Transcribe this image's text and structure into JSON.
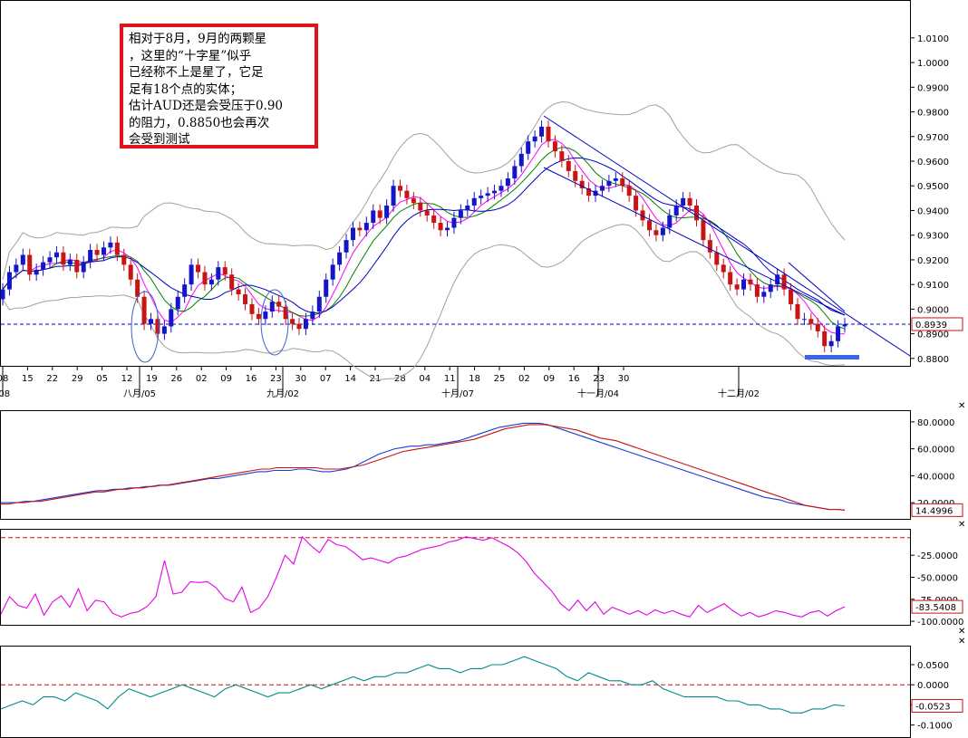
{
  "annotation": {
    "lines": [
      "相对于8月，9月的两颗星",
      "，这里的“十字星”似乎",
      "已经称不上是星了，它足",
      "足有18个点的实体；",
      "估计AUD还是会受压于0.90",
      "的阻力，0.8850也会再次",
      "会受到测试"
    ]
  },
  "colors": {
    "bull": "#1414c8",
    "bear": "#c81414",
    "bollinger": "#a0a0a0",
    "ma_fast": "#ff00ff",
    "ma_mid": "#008000",
    "ma_slow": "#0000c0",
    "ref_line": "#0000c0",
    "adx_plus": "#1e3cd2",
    "adx_minus": "#c81414",
    "wr": "#e600e6",
    "osc": "#008c8c",
    "dash_red": "#c81414",
    "annotation_border": "#e0141c",
    "price_tag": "#c81414"
  },
  "chart_data": [
    {
      "type": "candlestick",
      "symbol": "AUD",
      "y_ticks": [
        "1.0100",
        "1.0000",
        "0.9900",
        "0.9800",
        "0.9700",
        "0.9600",
        "0.9500",
        "0.9400",
        "0.9300",
        "0.9200",
        "0.9100",
        "0.9000",
        "0.8900",
        "0.8800"
      ],
      "ylim": [
        0.877,
        1.025
      ],
      "last_price_label": "0.8939",
      "reference_line": 0.8939,
      "x_ticks": [
        "08",
        "15",
        "22",
        "29",
        "05",
        "12",
        "19",
        "26",
        "02",
        "09",
        "16",
        "23",
        "30",
        "07",
        "14",
        "21",
        "28",
        "04",
        "11",
        "18",
        "25",
        "02",
        "09",
        "16",
        "23",
        "30"
      ],
      "month_labels": [
        "月/08",
        "八月/05",
        "九月/02",
        "十月/07",
        "十一月/04",
        "十二月/02"
      ],
      "closes": [
        0.908,
        0.915,
        0.918,
        0.922,
        0.914,
        0.916,
        0.919,
        0.921,
        0.923,
        0.918,
        0.92,
        0.915,
        0.919,
        0.924,
        0.922,
        0.925,
        0.927,
        0.922,
        0.918,
        0.912,
        0.905,
        0.894,
        0.896,
        0.89,
        0.893,
        0.9,
        0.905,
        0.91,
        0.918,
        0.915,
        0.91,
        0.912,
        0.917,
        0.914,
        0.908,
        0.906,
        0.902,
        0.898,
        0.896,
        0.899,
        0.903,
        0.901,
        0.896,
        0.894,
        0.892,
        0.896,
        0.899,
        0.905,
        0.912,
        0.918,
        0.923,
        0.928,
        0.933,
        0.932,
        0.935,
        0.94,
        0.937,
        0.942,
        0.95,
        0.948,
        0.945,
        0.943,
        0.94,
        0.938,
        0.935,
        0.932,
        0.933,
        0.937,
        0.94,
        0.942,
        0.945,
        0.946,
        0.947,
        0.948,
        0.95,
        0.953,
        0.958,
        0.963,
        0.968,
        0.97,
        0.974,
        0.968,
        0.964,
        0.96,
        0.956,
        0.952,
        0.949,
        0.946,
        0.948,
        0.95,
        0.952,
        0.953,
        0.95,
        0.946,
        0.94,
        0.936,
        0.932,
        0.93,
        0.933,
        0.938,
        0.942,
        0.945,
        0.942,
        0.936,
        0.928,
        0.923,
        0.918,
        0.915,
        0.91,
        0.908,
        0.912,
        0.91,
        0.905,
        0.907,
        0.91,
        0.914,
        0.908,
        0.902,
        0.896,
        0.896,
        0.894,
        0.891,
        0.885,
        0.887,
        0.893,
        0.8939
      ]
    },
    {
      "type": "line",
      "name": "ADX",
      "y_ticks": [
        "80.0000",
        "60.0000",
        "40.0000",
        "20.0000"
      ],
      "ylim": [
        8,
        88
      ],
      "last_value_label": "14.4996",
      "series": [
        {
          "name": "",
          "values": [
            20,
            20,
            20,
            21,
            21,
            22,
            23,
            24,
            25,
            26,
            27,
            28,
            29,
            29,
            30,
            30,
            31,
            31,
            32,
            32,
            33,
            33,
            34,
            35,
            36,
            37,
            38,
            38,
            39,
            40,
            41,
            42,
            43,
            43,
            44,
            44,
            44,
            45,
            45,
            44,
            43,
            43,
            44,
            45,
            47,
            50,
            53,
            56,
            58,
            60,
            61,
            62,
            62,
            63,
            63,
            64,
            65,
            66,
            68,
            70,
            72,
            74,
            76,
            77,
            78,
            79,
            79,
            79,
            78,
            76,
            74,
            72,
            70,
            68,
            66,
            64,
            62,
            60,
            58,
            56,
            54,
            52,
            50,
            48,
            46,
            44,
            42,
            40,
            38,
            36,
            34,
            32,
            30,
            28,
            26,
            24,
            23,
            22,
            20,
            19,
            18,
            17,
            16,
            15,
            15,
            14.5
          ]
        },
        {
          "name": "",
          "values": [
            19,
            19,
            20,
            20,
            21,
            21,
            22,
            23,
            24,
            25,
            26,
            27,
            28,
            28,
            29,
            30,
            30,
            31,
            31,
            32,
            33,
            33,
            34,
            35,
            36,
            37,
            38,
            39,
            40,
            41,
            42,
            43,
            44,
            45,
            45,
            46,
            46,
            46,
            46,
            46,
            46,
            45,
            45,
            45,
            46,
            47,
            48,
            50,
            52,
            54,
            56,
            58,
            59,
            60,
            61,
            62,
            63,
            64,
            65,
            66,
            67,
            69,
            71,
            73,
            75,
            76,
            77,
            78,
            78,
            78,
            77,
            76,
            75,
            74,
            72,
            70,
            68,
            67,
            66,
            64,
            62,
            60,
            58,
            56,
            54,
            52,
            50,
            48,
            46,
            44,
            42,
            40,
            38,
            36,
            34,
            32,
            30,
            28,
            26,
            24,
            22,
            20,
            18,
            17,
            16,
            15,
            15,
            14.5
          ]
        }
      ]
    },
    {
      "type": "line",
      "name": "Williams %R",
      "y_ticks": [
        "-25.0000",
        "-50.0000",
        "-75.0000",
        "-100.0000"
      ],
      "ylim": [
        -104,
        4
      ],
      "dashed_level": -5,
      "last_value_label": "-83.5408",
      "series": [
        {
          "name": "",
          "values": [
            -92,
            -72,
            -82,
            -85,
            -69,
            -93,
            -78,
            -71,
            -84,
            -63,
            -88,
            -76,
            -78,
            -91,
            -95,
            -91,
            -89,
            -83,
            -72,
            -31,
            -69,
            -67,
            -55,
            -56,
            -55,
            -62,
            -74,
            -78,
            -61,
            -90,
            -85,
            -72,
            -50,
            -25,
            -35,
            -4,
            -14,
            -22,
            -7,
            -13,
            -15,
            -22,
            -30,
            -28,
            -31,
            -34,
            -28,
            -26,
            -22,
            -18,
            -16,
            -14,
            -10,
            -8,
            -4,
            -6,
            -8,
            -5,
            -10,
            -15,
            -22,
            -32,
            -46,
            -56,
            -66,
            -80,
            -88,
            -76,
            -88,
            -78,
            -92,
            -84,
            -88,
            -92,
            -88,
            -93,
            -87,
            -91,
            -88,
            -92,
            -95,
            -82,
            -90,
            -85,
            -80,
            -88,
            -94,
            -90,
            -95,
            -92,
            -88,
            -90,
            -93,
            -95,
            -90,
            -88,
            -94,
            -88,
            -83.5408
          ]
        }
      ]
    },
    {
      "type": "line",
      "name": "Oscillator",
      "y_ticks": [
        "0.0500",
        "0.0000",
        "-0.0500",
        "-0.1000"
      ],
      "ylim": [
        -0.13,
        0.095
      ],
      "dashed_level": 0,
      "last_value_label": "-0.0523",
      "series": [
        {
          "name": "",
          "values": [
            -0.06,
            -0.05,
            -0.04,
            -0.05,
            -0.03,
            -0.03,
            -0.04,
            -0.02,
            -0.03,
            -0.04,
            -0.06,
            -0.03,
            -0.01,
            -0.02,
            -0.03,
            -0.02,
            -0.01,
            0.0,
            -0.01,
            -0.02,
            -0.03,
            -0.01,
            0.0,
            -0.01,
            -0.02,
            -0.03,
            -0.02,
            -0.02,
            -0.01,
            0.0,
            -0.01,
            0.0,
            0.01,
            0.02,
            0.01,
            0.02,
            0.02,
            0.03,
            0.03,
            0.04,
            0.05,
            0.04,
            0.04,
            0.03,
            0.04,
            0.04,
            0.05,
            0.05,
            0.06,
            0.07,
            0.06,
            0.05,
            0.04,
            0.02,
            0.01,
            0.03,
            0.02,
            0.01,
            0.01,
            0.0,
            0.0,
            0.01,
            -0.01,
            -0.02,
            -0.03,
            -0.03,
            -0.03,
            -0.03,
            -0.04,
            -0.04,
            -0.05,
            -0.05,
            -0.06,
            -0.06,
            -0.07,
            -0.07,
            -0.06,
            -0.06,
            -0.05,
            -0.0523
          ]
        }
      ]
    }
  ]
}
